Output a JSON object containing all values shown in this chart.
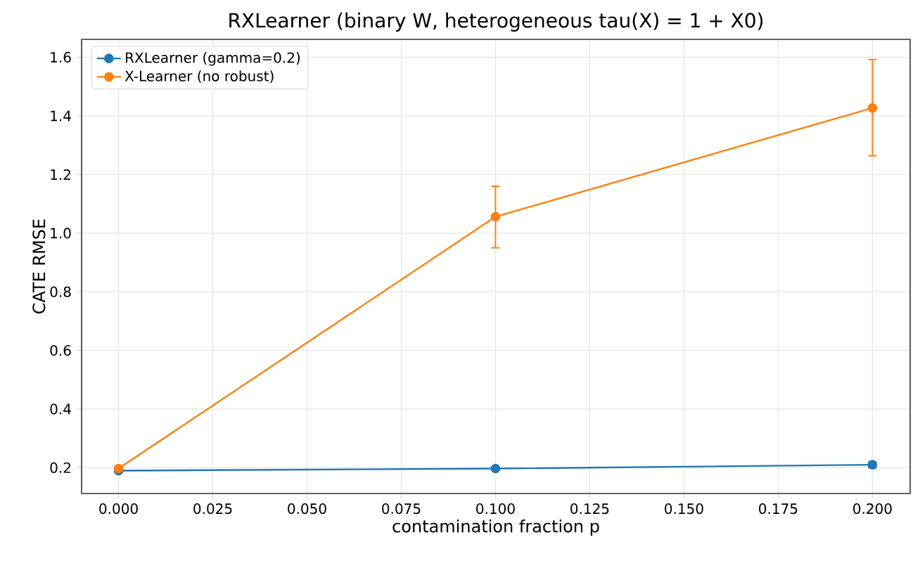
{
  "chart_data": {
    "type": "line",
    "title": "RXLearner  (binary W, heterogeneous tau(X) = 1 + X0)",
    "xlabel": "contamination fraction p",
    "ylabel": "CATE RMSE",
    "x": [
      0.0,
      0.1,
      0.2
    ],
    "series": [
      {
        "name": "RXLearner (gamma=0.2)",
        "color": "#1f77b4",
        "values": [
          0.19,
          0.197,
          0.21
        ],
        "errors": [
          0.005,
          0.005,
          0.01
        ]
      },
      {
        "name": "X-Learner (no robust)",
        "color": "#ff7f0e",
        "values": [
          0.197,
          1.056,
          1.427
        ],
        "errors": [
          0.005,
          [
            0.95,
            1.16
          ],
          [
            1.264,
            1.592
          ]
        ]
      }
    ],
    "xlim": [
      -0.0098,
      0.21
    ],
    "ylim": [
      0.112,
      1.661
    ],
    "xticks": [
      {
        "value": 0.0,
        "label": "0.000"
      },
      {
        "value": 0.025,
        "label": "0.025"
      },
      {
        "value": 0.05,
        "label": "0.050"
      },
      {
        "value": 0.075,
        "label": "0.075"
      },
      {
        "value": 0.1,
        "label": "0.100"
      },
      {
        "value": 0.125,
        "label": "0.125"
      },
      {
        "value": 0.15,
        "label": "0.150"
      },
      {
        "value": 0.175,
        "label": "0.175"
      },
      {
        "value": 0.2,
        "label": "0.200"
      }
    ],
    "yticks": [
      {
        "value": 0.2,
        "label": "0.2"
      },
      {
        "value": 0.4,
        "label": "0.4"
      },
      {
        "value": 0.6,
        "label": "0.6"
      },
      {
        "value": 0.8,
        "label": "0.8"
      },
      {
        "value": 1.0,
        "label": "1.0"
      },
      {
        "value": 1.2,
        "label": "1.2"
      },
      {
        "value": 1.4,
        "label": "1.4"
      },
      {
        "value": 1.6,
        "label": "1.6"
      }
    ],
    "grid": true,
    "legend": "top left",
    "marker": "circle",
    "line_style": "solid"
  }
}
